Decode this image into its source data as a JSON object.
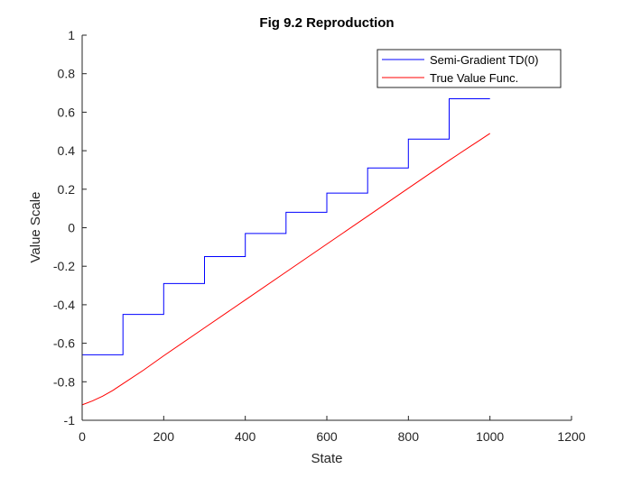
{
  "chart_data": {
    "type": "line",
    "title": "Fig 9.2 Reproduction",
    "xlabel": "State",
    "ylabel": "Value Scale",
    "xlim": [
      0,
      1200
    ],
    "ylim": [
      -1,
      1
    ],
    "xticks": [
      0,
      200,
      400,
      600,
      800,
      1000,
      1200
    ],
    "yticks": [
      -1,
      -0.8,
      -0.6,
      -0.4,
      -0.2,
      0,
      0.2,
      0.4,
      0.6,
      0.8,
      1
    ],
    "xtick_labels": [
      "0",
      "200",
      "400",
      "600",
      "800",
      "1000",
      "1200"
    ],
    "ytick_labels": [
      "-1",
      "-0.8",
      "-0.6",
      "-0.4",
      "-0.2",
      "0",
      "0.2",
      "0.4",
      "0.6",
      "0.8",
      "1"
    ],
    "grid": false,
    "legend_position": "top-right",
    "series": [
      {
        "name": "Semi-Gradient TD(0)",
        "color": "#0000ff",
        "step": true,
        "x": [
          0,
          100,
          100,
          200,
          200,
          300,
          300,
          400,
          400,
          500,
          500,
          600,
          600,
          700,
          700,
          800,
          800,
          900,
          900,
          1000
        ],
        "y": [
          -0.66,
          -0.66,
          -0.45,
          -0.45,
          -0.29,
          -0.29,
          -0.15,
          -0.15,
          -0.03,
          -0.03,
          0.08,
          0.08,
          0.18,
          0.18,
          0.31,
          0.31,
          0.46,
          0.46,
          0.67,
          0.67
        ]
      },
      {
        "name": "True Value Func.",
        "color": "#ff0000",
        "x": [
          0,
          25,
          50,
          75,
          100,
          150,
          200,
          300,
          400,
          500,
          600,
          700,
          800,
          900,
          950,
          975,
          1000
        ],
        "y": [
          -0.92,
          -0.9,
          -0.875,
          -0.845,
          -0.81,
          -0.74,
          -0.665,
          -0.52,
          -0.375,
          -0.23,
          -0.085,
          0.06,
          0.205,
          0.35,
          0.42,
          0.455,
          0.49
        ]
      }
    ]
  }
}
